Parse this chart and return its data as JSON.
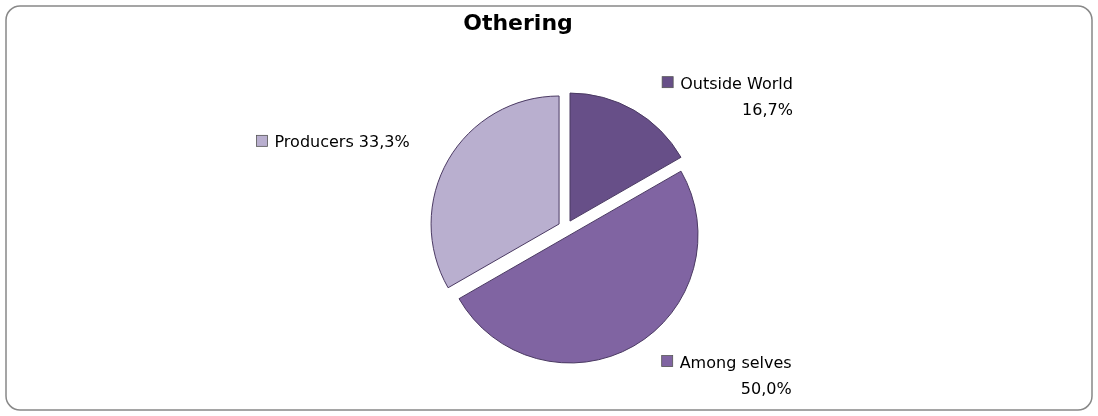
{
  "chart_data": {
    "type": "pie",
    "title": "Othering",
    "categories": [
      "Outside World",
      "Among selves",
      "Producers"
    ],
    "values": [
      16.7,
      50.0,
      33.3
    ],
    "colors": [
      "#674f88",
      "#8064a2",
      "#b9afcf"
    ],
    "value_labels": [
      "16,7%",
      "50,0%",
      "33,3%"
    ],
    "legend": "top left"
  }
}
